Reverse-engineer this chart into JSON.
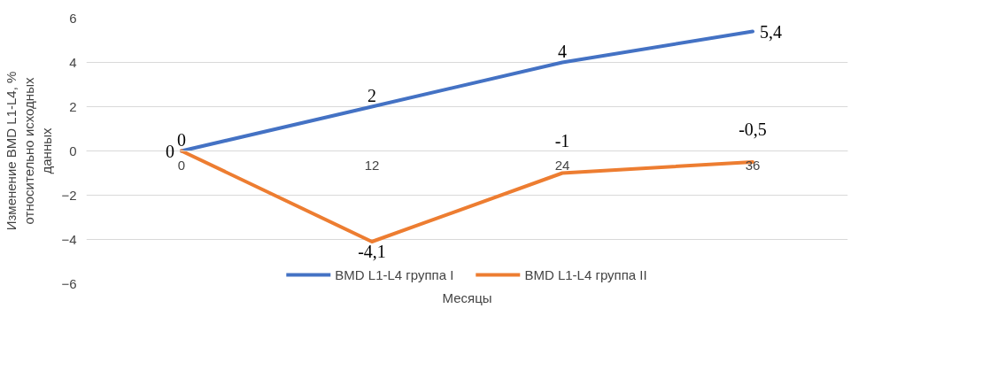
{
  "chart_data": {
    "type": "line",
    "xlabel": "Месяцы",
    "ylabel": "Изменение BMD L1-L4, %\nотносительно исходных\nданных",
    "categories": [
      "0",
      "12",
      "24",
      "36"
    ],
    "series": [
      {
        "name": "BMD L1-L4 группа I",
        "color": "#4472c4",
        "values": [
          0,
          2,
          4,
          5.4
        ],
        "value_labels": [
          "0",
          "2",
          "4",
          "5,4"
        ]
      },
      {
        "name": "BMD L1-L4 группа II",
        "color": "#ed7d31",
        "values": [
          0,
          -4.1,
          -1,
          -0.5
        ],
        "value_labels": [
          "0",
          "-4,1",
          "-1",
          "-0,5"
        ]
      }
    ],
    "ylim": [
      -6,
      6
    ],
    "yticks": [
      -6,
      -4,
      -2,
      0,
      2,
      4,
      6
    ],
    "grid": "y",
    "legend": "bottom",
    "marker": "none",
    "line_style": "solid"
  }
}
